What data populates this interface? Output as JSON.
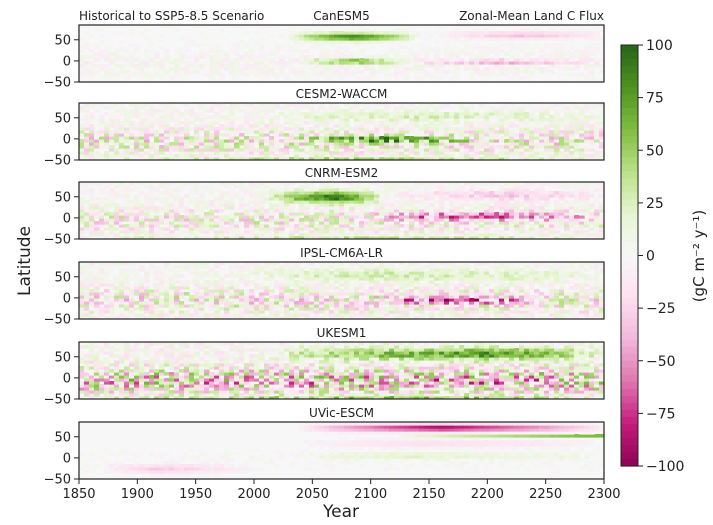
{
  "figure": {
    "header_left": "Historical to SSP5-8.5 Scenario",
    "header_right": "Zonal-Mean Land C Flux"
  },
  "chart_data": {
    "type": "heatmap",
    "xlabel": "Year",
    "ylabel": "Latitude",
    "xlim": [
      1850,
      2300
    ],
    "xticks": [
      1850,
      1900,
      1950,
      2000,
      2050,
      2100,
      2150,
      2200,
      2250,
      2300
    ],
    "ylim": [
      -50,
      85
    ],
    "yticks": [
      50,
      0,
      -50
    ],
    "colorbar": {
      "label": "(gC m⁻² y⁻¹)",
      "range": [
        -100,
        100
      ],
      "ticks": [
        100,
        75,
        50,
        25,
        0,
        -25,
        -50,
        -75,
        -100
      ],
      "colormap": "PiYG",
      "colors": [
        "#8e0152",
        "#c51b7d",
        "#de77ae",
        "#f1b6da",
        "#fde0ef",
        "#f7f7f7",
        "#e6f5d0",
        "#b8e186",
        "#7fbc41",
        "#4d9221",
        "#276419"
      ]
    },
    "panels": [
      {
        "title": "CanESM5",
        "features": [
          {
            "lat": 58,
            "width": 9,
            "start": 2030,
            "end": 2140,
            "peak": 2085,
            "amp": 90
          },
          {
            "lat": 0,
            "width": 5,
            "start": 2040,
            "end": 2130,
            "peak": 2085,
            "amp": 80
          },
          {
            "lat": 62,
            "width": 8,
            "start": 2160,
            "end": 2300,
            "peak": 2230,
            "amp": -35
          },
          {
            "lat": -2,
            "width": 6,
            "start": 2140,
            "end": 2300,
            "peak": 2210,
            "amp": -40
          }
        ],
        "noise": 10
      },
      {
        "title": "CESM2-WACCM",
        "features": [
          {
            "lat": 55,
            "width": 12,
            "start": 2000,
            "end": 2300,
            "peak": 2150,
            "amp": 25
          },
          {
            "lat": 0,
            "width": 7,
            "start": 2040,
            "end": 2190,
            "peak": 2100,
            "amp": 95
          },
          {
            "lat": -45,
            "width": 4,
            "start": 1850,
            "end": 2300,
            "peak": 2100,
            "amp": 45
          }
        ],
        "noise": 35
      },
      {
        "title": "CNRM-ESM2",
        "features": [
          {
            "lat": 50,
            "width": 14,
            "start": 2010,
            "end": 2110,
            "peak": 2070,
            "amp": 95
          },
          {
            "lat": 5,
            "width": 10,
            "start": 2100,
            "end": 2300,
            "peak": 2180,
            "amp": -65
          },
          {
            "lat": 55,
            "width": 12,
            "start": 2120,
            "end": 2300,
            "peak": 2220,
            "amp": -30
          },
          {
            "lat": -45,
            "width": 4,
            "start": 1850,
            "end": 2300,
            "peak": 2100,
            "amp": 40
          }
        ],
        "noise": 30
      },
      {
        "title": "IPSL-CM6A-LR",
        "features": [
          {
            "lat": 55,
            "width": 14,
            "start": 1990,
            "end": 2300,
            "peak": 2110,
            "amp": 30
          },
          {
            "lat": -5,
            "width": 8,
            "start": 2100,
            "end": 2240,
            "peak": 2170,
            "amp": -75
          }
        ],
        "noise": 35
      },
      {
        "title": "UKESM1",
        "features": [
          {
            "lat": 58,
            "width": 14,
            "start": 2010,
            "end": 2300,
            "peak": 2200,
            "amp": 80
          },
          {
            "lat": -8,
            "width": 12,
            "start": 1850,
            "end": 2300,
            "peak": 2200,
            "amp": -20
          },
          {
            "lat": -45,
            "width": 4,
            "start": 1850,
            "end": 2300,
            "peak": 2150,
            "amp": 55
          }
        ],
        "noise": 55
      },
      {
        "title": "UVic-ESCM",
        "features": [
          {
            "lat": 72,
            "width": 8,
            "start": 2040,
            "end": 2300,
            "peak": 2160,
            "amp": -95
          },
          {
            "lat": 52,
            "width": 3,
            "start": 2120,
            "end": 2300,
            "peak": 2300,
            "amp": 70
          },
          {
            "lat": 35,
            "width": 10,
            "start": 2040,
            "end": 2300,
            "peak": 2150,
            "amp": -20
          },
          {
            "lat": 5,
            "width": 8,
            "start": 2040,
            "end": 2300,
            "peak": 2120,
            "amp": 20
          },
          {
            "lat": -25,
            "width": 10,
            "start": 1870,
            "end": 2000,
            "peak": 1920,
            "amp": -30
          }
        ],
        "noise": 4
      }
    ]
  }
}
